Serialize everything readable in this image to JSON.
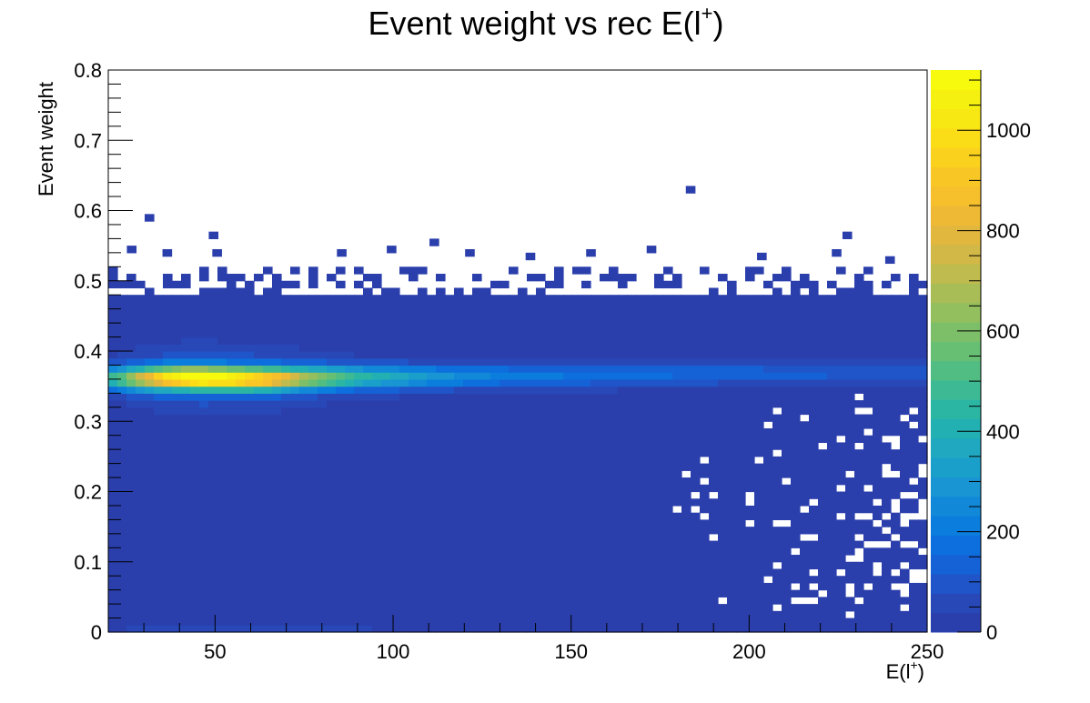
{
  "chart_data": {
    "type": "heatmap",
    "title": "Event weight vs rec E(l",
    "title_sup": "+",
    "title_close": ")",
    "xlabel": "E(l",
    "xlabel_sup": "+",
    "xlabel_close": ")",
    "ylabel": "Event weight",
    "xlim": [
      20,
      250
    ],
    "ylim": [
      0,
      0.8
    ],
    "zlim": [
      0,
      1120
    ],
    "x_ticks": [
      50,
      100,
      150,
      200,
      250
    ],
    "x_tick_labels": [
      "50",
      "100",
      "150",
      "200",
      "250"
    ],
    "y_ticks": [
      0,
      0.1,
      0.2,
      0.3,
      0.4,
      0.5,
      0.6,
      0.7,
      0.8
    ],
    "y_tick_labels": [
      "0",
      "0.1",
      "0.2",
      "0.3",
      "0.4",
      "0.5",
      "0.6",
      "0.7",
      "0.8"
    ],
    "z_ticks": [
      0,
      200,
      400,
      600,
      800,
      1000
    ],
    "z_tick_labels": [
      "0",
      "200",
      "400",
      "600",
      "800",
      "1000"
    ],
    "colorbar_colors": [
      "#2b3fac",
      "#2848b8",
      "#1f55c8",
      "#1562d6",
      "#0d6fdd",
      "#0b7ddd",
      "#1189d8",
      "#1895d2",
      "#1a9fcb",
      "#1fa8c0",
      "#23b0b3",
      "#2bb6a4",
      "#3dba94",
      "#52bd83",
      "#67bf74",
      "#7dbf68",
      "#93bf5e",
      "#a9bd56",
      "#bfbb4e",
      "#d2b947",
      "#e2b73e",
      "#eeb935",
      "#f6bf2c",
      "#f9c725",
      "#fad21e",
      "#fadd17",
      "#f7e713",
      "#f5f00f",
      "#f8fa0d"
    ],
    "core_ridge": {
      "description_free": true,
      "x": [
        22,
        35,
        45,
        55,
        65,
        75,
        90,
        110,
        130,
        150,
        170,
        190,
        210,
        230,
        248
      ],
      "y": [
        0.362,
        0.362,
        0.362,
        0.361,
        0.361,
        0.362,
        0.363,
        0.364,
        0.365,
        0.366,
        0.367,
        0.368,
        0.369,
        0.37,
        0.37
      ],
      "peak_z": [
        430,
        900,
        1080,
        1000,
        870,
        640,
        410,
        270,
        200,
        170,
        150,
        130,
        115,
        110,
        100
      ]
    },
    "isolated_bins": [
      {
        "x": 183.5,
        "y": 0.63,
        "z": 1
      },
      {
        "x": 31.5,
        "y": 0.59,
        "z": 1
      },
      {
        "x": 227.5,
        "y": 0.565,
        "z": 1
      },
      {
        "x": 49.5,
        "y": 0.565,
        "z": 1
      },
      {
        "x": 111.5,
        "y": 0.555,
        "z": 1
      },
      {
        "x": 26.5,
        "y": 0.545,
        "z": 1
      },
      {
        "x": 36.5,
        "y": 0.54,
        "z": 1
      },
      {
        "x": 50.5,
        "y": 0.54,
        "z": 1
      },
      {
        "x": 85.5,
        "y": 0.54,
        "z": 1
      },
      {
        "x": 99.5,
        "y": 0.545,
        "z": 1
      },
      {
        "x": 121.5,
        "y": 0.54,
        "z": 1
      },
      {
        "x": 138.5,
        "y": 0.535,
        "z": 1
      },
      {
        "x": 155.5,
        "y": 0.54,
        "z": 1
      },
      {
        "x": 172.5,
        "y": 0.545,
        "z": 1
      },
      {
        "x": 203.5,
        "y": 0.535,
        "z": 1
      },
      {
        "x": 224.5,
        "y": 0.54,
        "z": 1
      },
      {
        "x": 239.5,
        "y": 0.53,
        "z": 1
      }
    ]
  }
}
